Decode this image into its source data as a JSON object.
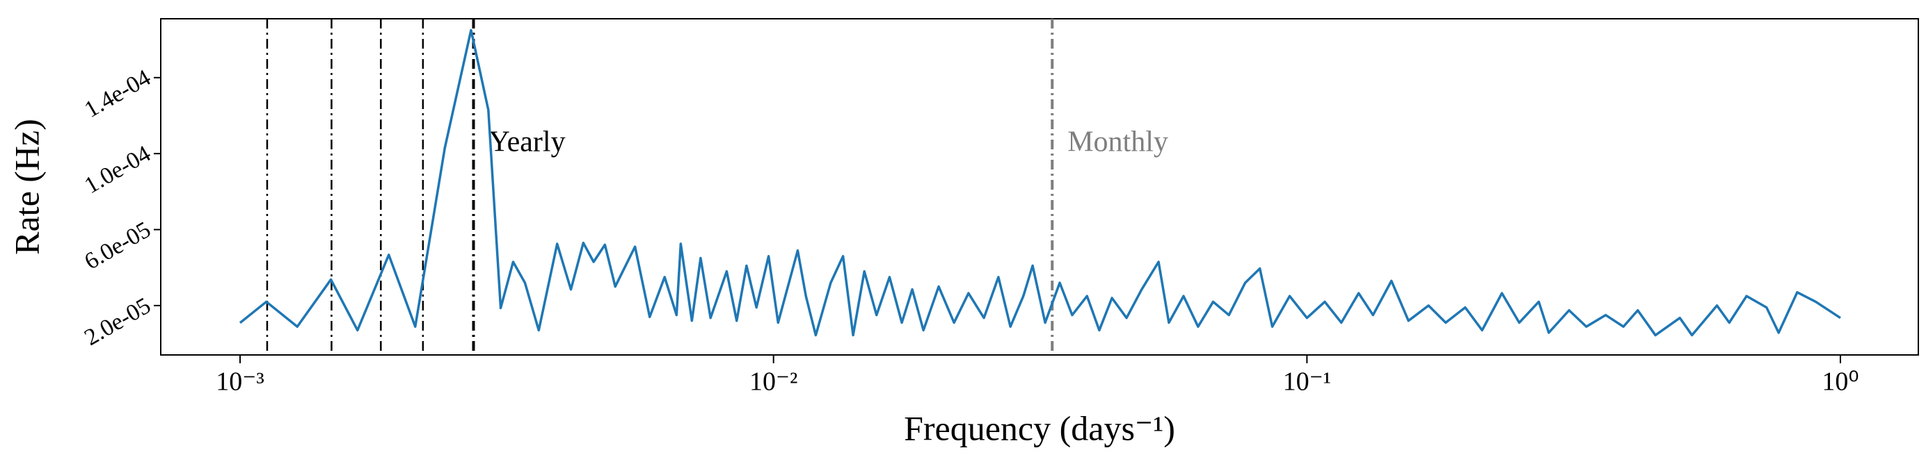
{
  "chart_data": {
    "type": "line",
    "xlabel": "Frequency (days⁻¹)",
    "ylabel": "Rate (Hz)",
    "xscale": "log",
    "xlim": [
      0.00071,
      1.4
    ],
    "ylim": [
      -6e-06,
      0.000171
    ],
    "xticks": [
      {
        "value": 0.001,
        "label": "10⁻³"
      },
      {
        "value": 0.01,
        "label": "10⁻²"
      },
      {
        "value": 0.1,
        "label": "10⁻¹"
      },
      {
        "value": 1,
        "label": "10⁰"
      }
    ],
    "yticks": [
      {
        "value": 2e-05,
        "label": "2.0e-05"
      },
      {
        "value": 6e-05,
        "label": "6.0e-05"
      },
      {
        "value": 0.0001,
        "label": "1.0e-04"
      },
      {
        "value": 0.00014,
        "label": "1.4e-04"
      }
    ],
    "x": [
      0.001,
      0.00112,
      0.00128,
      0.00148,
      0.00166,
      0.0019,
      0.00213,
      0.00242,
      0.00271,
      0.00292,
      0.00308,
      0.00325,
      0.00342,
      0.00363,
      0.00393,
      0.00417,
      0.0044,
      0.0046,
      0.00483,
      0.00505,
      0.0055,
      0.00586,
      0.00625,
      0.00658,
      0.0067,
      0.00703,
      0.0073,
      0.00762,
      0.00817,
      0.00853,
      0.0089,
      0.00929,
      0.00979,
      0.0102,
      0.0111,
      0.0115,
      0.012,
      0.0128,
      0.0135,
      0.0141,
      0.0148,
      0.0156,
      0.0165,
      0.0174,
      0.0182,
      0.0191,
      0.0204,
      0.0218,
      0.0232,
      0.0248,
      0.0264,
      0.0278,
      0.0294,
      0.0306,
      0.0323,
      0.0344,
      0.0363,
      0.0387,
      0.0408,
      0.0431,
      0.0459,
      0.049,
      0.0527,
      0.0551,
      0.0587,
      0.0625,
      0.0667,
      0.0714,
      0.0766,
      0.0816,
      0.0861,
      0.0928,
      0.1,
      0.108,
      0.116,
      0.125,
      0.133,
      0.144,
      0.155,
      0.169,
      0.182,
      0.198,
      0.213,
      0.232,
      0.25,
      0.272,
      0.284,
      0.31,
      0.334,
      0.363,
      0.392,
      0.417,
      0.45,
      0.5,
      0.527,
      0.587,
      0.619,
      0.667,
      0.727,
      0.766,
      0.83,
      0.899,
      1.0
    ],
    "series": [
      {
        "color": "#1f77b4",
        "values": [
          1.09e-05,
          2.2e-05,
          8.9e-06,
          3.37e-05,
          7e-06,
          4.67e-05,
          8.9e-06,
          0.000103,
          0.000165,
          0.000123,
          1.87e-05,
          4.3e-05,
          3.2e-05,
          7e-06,
          5.25e-05,
          2.85e-05,
          5.3e-05,
          4.3e-05,
          5.2e-05,
          3e-05,
          5.1e-05,
          1.4e-05,
          3.5e-05,
          1.5e-05,
          5.25e-05,
          1.2e-05,
          4.5e-05,
          1.35e-05,
          3.8e-05,
          1.2e-05,
          4.1e-05,
          1.9e-05,
          4.6e-05,
          1.1e-05,
          4.9e-05,
          2.5e-05,
          4.4e-06,
          3.2e-05,
          4.6e-05,
          4.4e-06,
          3.8e-05,
          1.5e-05,
          3.5e-05,
          1.1e-05,
          2.85e-05,
          7e-06,
          3e-05,
          1.1e-05,
          2.65e-05,
          1.35e-05,
          3.5e-05,
          8.9e-06,
          2.5e-05,
          4.1e-05,
          1.1e-05,
          3.2e-05,
          1.5e-05,
          2.5e-05,
          7e-06,
          2.4e-05,
          1.35e-05,
          2.85e-05,
          4.3e-05,
          1.1e-05,
          2.5e-05,
          8.9e-06,
          2.2e-05,
          1.5e-05,
          3.2e-05,
          3.95e-05,
          8.9e-06,
          2.5e-05,
          1.35e-05,
          2.2e-05,
          1.1e-05,
          2.65e-05,
          1.5e-05,
          3.3e-05,
          1.2e-05,
          2e-05,
          1.1e-05,
          1.9e-05,
          7e-06,
          2.65e-05,
          1.1e-05,
          2.2e-05,
          5.7e-06,
          1.75e-05,
          8.9e-06,
          1.5e-05,
          8.9e-06,
          1.75e-05,
          4.4e-06,
          1.35e-05,
          4.4e-06,
          2e-05,
          1.1e-05,
          2.5e-05,
          1.9e-05,
          5.7e-06,
          2.7e-05,
          2.2e-05,
          1.35e-05
        ]
      }
    ],
    "vlines": [
      {
        "x": 0.001124,
        "color": "#000000"
      },
      {
        "x": 0.001484,
        "color": "#000000"
      },
      {
        "x": 0.001836,
        "color": "#000000"
      },
      {
        "x": 0.002202,
        "color": "#000000"
      },
      {
        "x": 0.002739,
        "color": "#000000",
        "label": "Yearly"
      },
      {
        "x": 0.0333,
        "color": "#7f7f7f",
        "label": "Monthly"
      }
    ]
  }
}
